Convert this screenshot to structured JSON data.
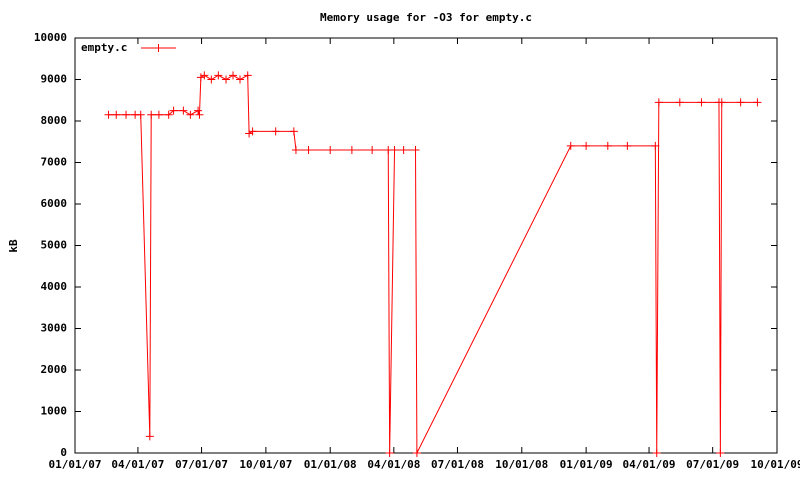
{
  "chart_data": {
    "type": "line",
    "title": "Memory usage for -O3 for empty.c",
    "y_label": "kB",
    "legend": "top-left",
    "xlim": [
      "2007-01-01",
      "2009-10-01"
    ],
    "xticks": [
      {
        "value": "2007-01-01",
        "label": "01/01/07"
      },
      {
        "value": "2007-04-01",
        "label": "04/01/07"
      },
      {
        "value": "2007-07-01",
        "label": "07/01/07"
      },
      {
        "value": "2007-10-01",
        "label": "10/01/07"
      },
      {
        "value": "2008-01-01",
        "label": "01/01/08"
      },
      {
        "value": "2008-04-01",
        "label": "04/01/08"
      },
      {
        "value": "2008-07-01",
        "label": "07/01/08"
      },
      {
        "value": "2008-10-01",
        "label": "10/01/08"
      },
      {
        "value": "2009-01-01",
        "label": "01/01/09"
      },
      {
        "value": "2009-04-01",
        "label": "04/01/09"
      },
      {
        "value": "2009-07-01",
        "label": "07/01/09"
      },
      {
        "value": "2009-10-01",
        "label": "10/01/09"
      }
    ],
    "ylim": [
      0,
      10000
    ],
    "yticks": [
      0,
      1000,
      2000,
      3000,
      4000,
      5000,
      6000,
      7000,
      8000,
      9000,
      10000
    ],
    "x": [
      "2007-02-18",
      "2007-03-01",
      "2007-03-15",
      "2007-03-28",
      "2007-04-05",
      "2007-04-18",
      "2007-04-20",
      "2007-05-01",
      "2007-05-15",
      "2007-05-22",
      "2007-06-05",
      "2007-06-15",
      "2007-06-26",
      "2007-06-28",
      "2007-06-30",
      "2007-07-05",
      "2007-07-15",
      "2007-07-25",
      "2007-08-05",
      "2007-08-15",
      "2007-08-25",
      "2007-09-05",
      "2007-09-07",
      "2007-09-12",
      "2007-10-15",
      "2007-11-10",
      "2007-11-13",
      "2007-12-01",
      "2008-01-01",
      "2008-02-01",
      "2008-03-01",
      "2008-03-24",
      "2008-03-26",
      "2008-04-02",
      "2008-04-15",
      "2008-05-02",
      "2008-05-04",
      "2008-12-10",
      "2009-01-01",
      "2009-02-01",
      "2009-03-01",
      "2009-04-10",
      "2009-04-12",
      "2009-04-15",
      "2009-05-15",
      "2009-06-15",
      "2009-07-10",
      "2009-07-12",
      "2009-07-14",
      "2009-08-10",
      "2009-09-03"
    ],
    "series": [
      {
        "name": "empty.c",
        "color": "#ff0000",
        "values": [
          8150,
          8150,
          8150,
          8150,
          8150,
          400,
          8150,
          8150,
          8150,
          8250,
          8250,
          8150,
          8250,
          8150,
          9050,
          9100,
          9000,
          9100,
          9000,
          9100,
          9000,
          9100,
          7700,
          7750,
          7750,
          7750,
          7300,
          7300,
          7300,
          7300,
          7300,
          7300,
          0,
          7300,
          7300,
          7300,
          0,
          7400,
          7400,
          7400,
          7400,
          7400,
          0,
          8450,
          8450,
          8450,
          8450,
          0,
          8450,
          8450,
          8450
        ]
      }
    ]
  }
}
